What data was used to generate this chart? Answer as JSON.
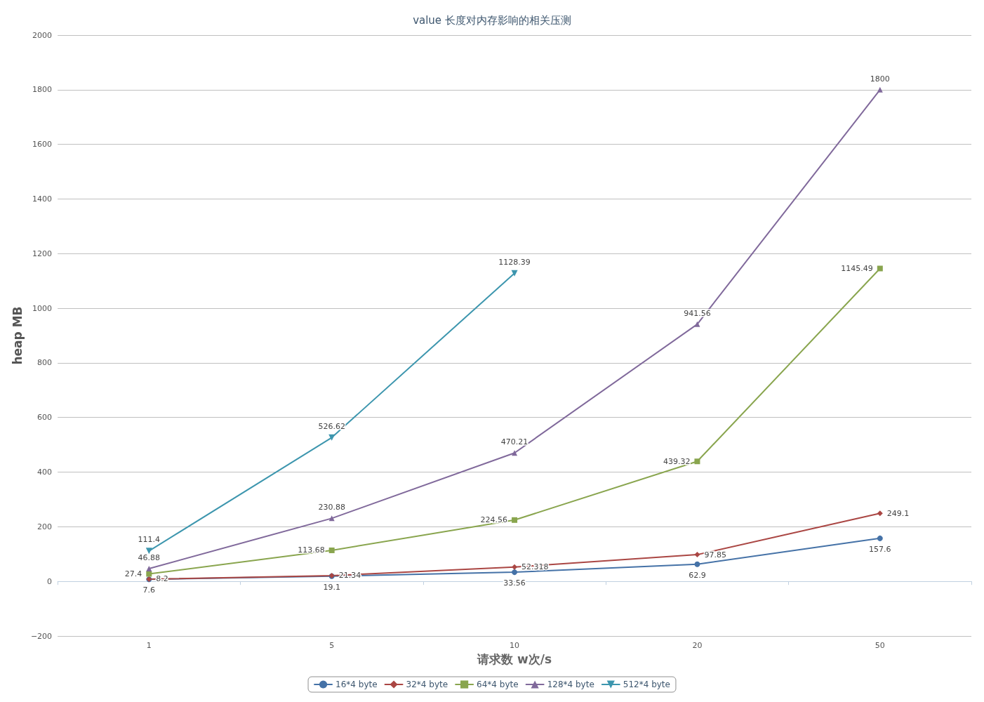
{
  "chart_data": {
    "type": "line",
    "title": "value 长度对内存影响的相关压测",
    "xlabel": "请求数 w次/s",
    "ylabel": "heap MB",
    "categories": [
      "1",
      "5",
      "10",
      "20",
      "50"
    ],
    "ylim": [
      -200,
      2000
    ],
    "yticks": [
      -200,
      0,
      200,
      400,
      600,
      800,
      1000,
      1200,
      1400,
      1600,
      1800,
      2000
    ],
    "grid": "y",
    "legend": "bottom",
    "data_labels": true,
    "series": [
      {
        "name": "16*4 byte",
        "color": "#4572a7",
        "marker": "circle",
        "values": [
          7.6,
          19.1,
          33.56,
          62.9,
          157.6
        ]
      },
      {
        "name": "32*4 byte",
        "color": "#aa4643",
        "marker": "diamond",
        "values": [
          8.2,
          21.34,
          52.318,
          97.85,
          249.1
        ]
      },
      {
        "name": "64*4 byte",
        "color": "#89a54e",
        "marker": "square",
        "values": [
          27.4,
          113.68,
          224.56,
          439.32,
          1145.49
        ]
      },
      {
        "name": "128*4 byte",
        "color": "#80699b",
        "marker": "triangle",
        "values": [
          46.88,
          230.88,
          470.21,
          941.56,
          1800
        ]
      },
      {
        "name": "512*4 byte",
        "color": "#3d96ae",
        "marker": "triangle-down",
        "values": [
          111.4,
          526.62,
          1128.39,
          null,
          null
        ]
      }
    ]
  }
}
